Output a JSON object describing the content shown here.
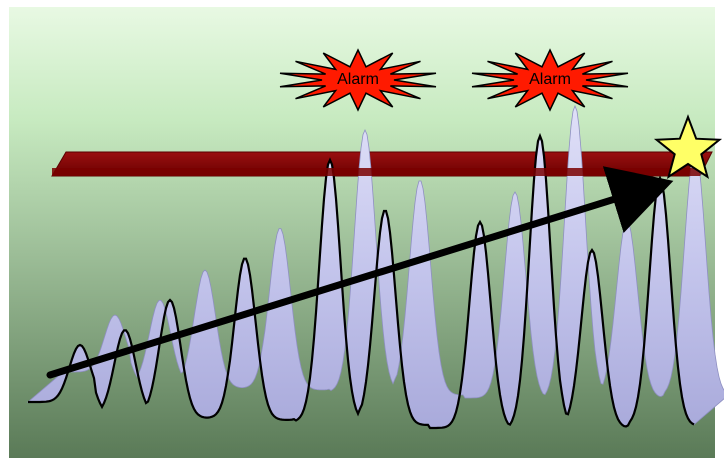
{
  "colors": {
    "background_top": "#e8f9e3",
    "background_bottom": "#5a7a57",
    "threshold_bar": "#800000",
    "waveform_fill": "#bcbde8",
    "waveform_stroke": "#000000",
    "alarm_fill": "#ff1a00",
    "star_fill": "#ffff66"
  },
  "alarms": [
    {
      "label": "Alarm"
    },
    {
      "label": "Alarm"
    }
  ],
  "icons": {
    "alarm": "alarm-starburst-icon",
    "goal": "star-icon",
    "trend": "trend-arrow-icon"
  }
}
